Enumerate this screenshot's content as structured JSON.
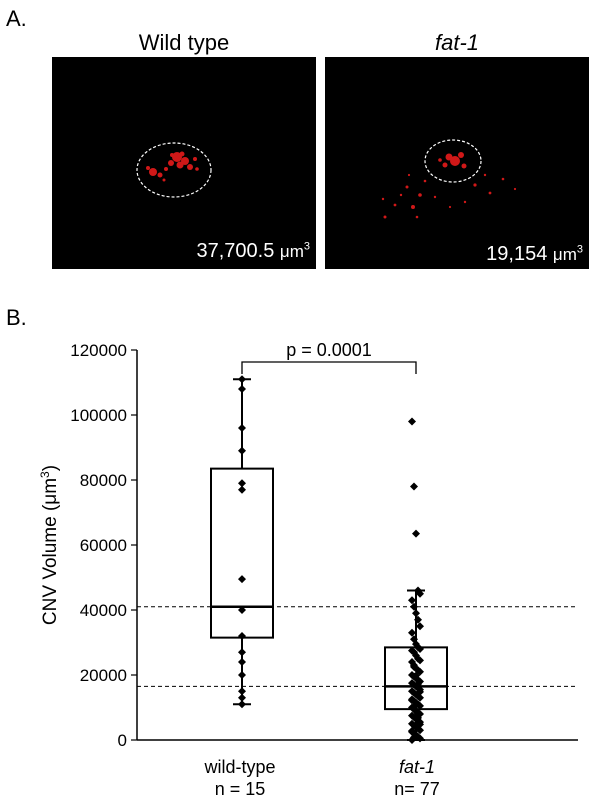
{
  "panel_a": {
    "label": "A.",
    "left": {
      "title": "Wild type",
      "volume_value": "37,700.5",
      "volume_unit": "μm",
      "volume_exp": "3"
    },
    "right": {
      "title": "fat-1",
      "volume_value": "19,154",
      "volume_unit": "μm",
      "volume_exp": "3"
    }
  },
  "panel_b": {
    "label": "B.",
    "ylabel_main": "CNV Volume (μm",
    "ylabel_exp": "3",
    "ylabel_close": ")",
    "significance": "p = 0.0001",
    "categories": [
      {
        "name": "wild-type",
        "n_label": "n = 15"
      },
      {
        "name": "fat-1",
        "n_label": "n= 77"
      }
    ]
  },
  "chart_data": {
    "type": "box",
    "ylim": [
      0,
      120000
    ],
    "yticks": [
      0,
      20000,
      40000,
      60000,
      80000,
      100000,
      120000
    ],
    "reference_lines": [
      41000,
      16500
    ],
    "groups": [
      {
        "category": "wild-type",
        "n": 15,
        "whisker_low": 11000,
        "q1": 31500,
        "median": 41000,
        "q3": 83500,
        "whisker_high": 111000,
        "points": [
          111000,
          108000,
          96000,
          89000,
          79000,
          77000,
          49500,
          40000,
          32000,
          27000,
          24000,
          20000,
          15000,
          13000,
          11000
        ]
      },
      {
        "category": "fat-1",
        "n": 77,
        "whisker_low": 0,
        "q1": 9500,
        "median": 16500,
        "q3": 28500,
        "whisker_high": 46000,
        "points": [
          98000,
          78000,
          63500,
          46000,
          45000,
          43000,
          41000,
          39000,
          37000,
          35000,
          33000,
          31000,
          29500,
          28500,
          28000,
          27500,
          27000,
          26000,
          25000,
          24500,
          24000,
          23000,
          22000,
          21500,
          21000,
          20000,
          19500,
          19000,
          18500,
          18000,
          17500,
          17000,
          16500,
          16000,
          15500,
          15000,
          14500,
          14000,
          13500,
          13000,
          12500,
          12000,
          11500,
          11000,
          10500,
          10000,
          9500,
          9000,
          8500,
          8000,
          7500,
          7000,
          6500,
          6000,
          5500,
          5000,
          4500,
          4000,
          3500,
          3000,
          2500,
          2000,
          1500,
          1000,
          500,
          0,
          22500,
          19800,
          17200,
          14800,
          12200,
          10200,
          8800,
          6800,
          4800,
          2800,
          800
        ]
      }
    ]
  }
}
